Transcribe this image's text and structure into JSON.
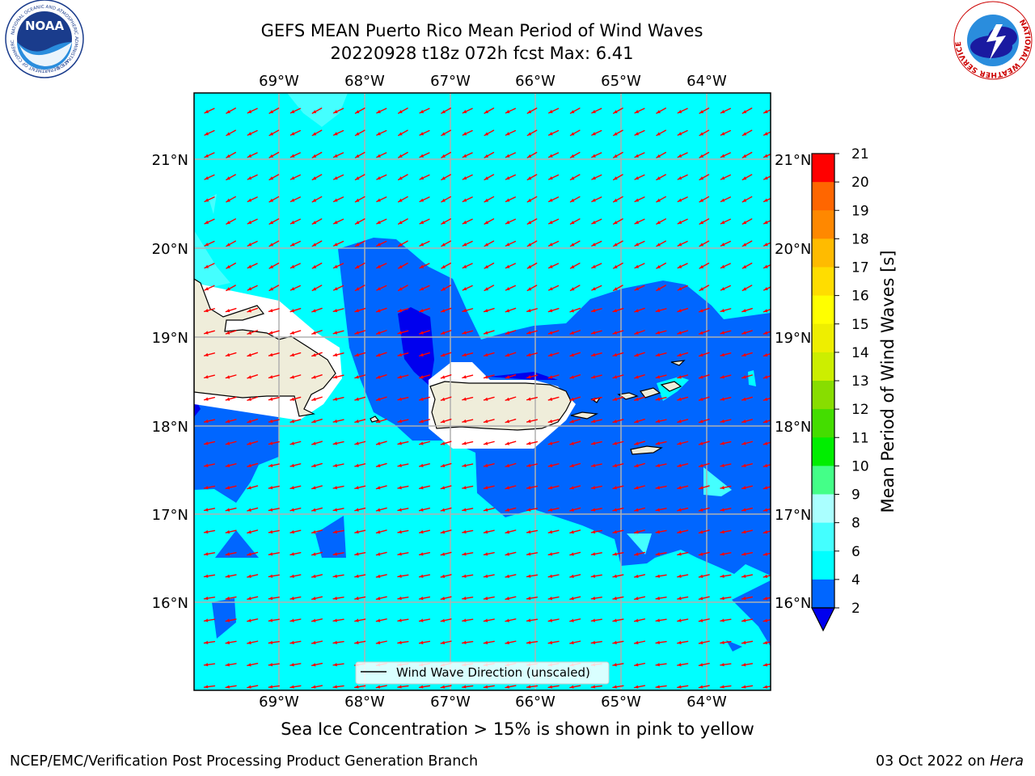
{
  "header": {
    "title_line1": "GEFS MEAN Puerto Rico Mean Period of Wind Waves",
    "title_line2": "20220928 t18z 072h fcst   Max: 6.41"
  },
  "map": {
    "lon_labels": [
      "69°W",
      "68°W",
      "67°W",
      "66°W",
      "65°W",
      "64°W"
    ],
    "lat_labels": [
      "21°N",
      "20°N",
      "19°N",
      "18°N",
      "17°N",
      "16°N"
    ],
    "legend_label": "Wind Wave Direction (unscaled)",
    "arrow_color": "#ff0000",
    "ocean_color": "#00ffff",
    "land_color": "#efedda"
  },
  "colorbar": {
    "label": "Mean Period of Wind Waves [s]",
    "ticks": [
      "2",
      "4",
      "6",
      "8",
      "9",
      "10",
      "11",
      "12",
      "13",
      "14",
      "15",
      "16",
      "17",
      "18",
      "19",
      "20",
      "21"
    ],
    "colors": [
      "#0066ff",
      "#00ffff",
      "#44ffff",
      "#aaffff",
      "#44ff88",
      "#00ee00",
      "#44dd00",
      "#88dd00",
      "#ccee00",
      "#eeee00",
      "#ffff00",
      "#ffdd00",
      "#ffbb00",
      "#ff8800",
      "#ff6600",
      "#ff3300",
      "#ff0000"
    ],
    "under_color": "#0000ee"
  },
  "caption": "Sea Ice Concentration > 15% is shown in pink to yellow",
  "footer": {
    "left": "NCEP/EMC/Verification Post Processing Product Generation Branch",
    "right_date": "03 Oct 2022 on ",
    "right_host": "Hera"
  },
  "logos": {
    "noaa_text": "NOAA",
    "noaa_ring": "NATIONAL OCEANIC AND ATMOSPHERIC ADMINISTRATION",
    "noaa_ring_bottom": "U.S. DEPARTMENT OF COMMERCE",
    "nws_ring": "NATIONAL WEATHER SERVICE"
  }
}
